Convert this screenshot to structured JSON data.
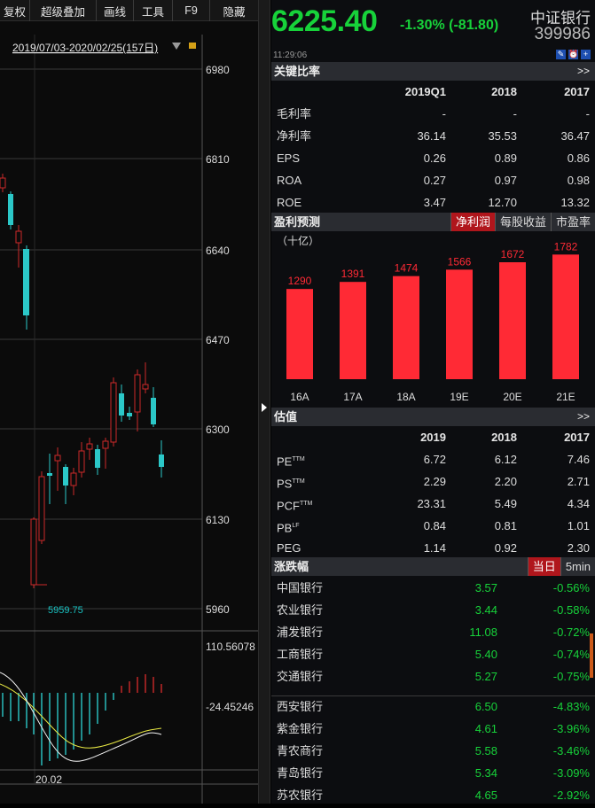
{
  "toolbar": {
    "items": [
      "复权",
      "超级叠加",
      "画线",
      "工具",
      "F9",
      "隐藏"
    ]
  },
  "chart": {
    "date_range": "2019/07/03-2020/02/25(157日)",
    "y_labels": [
      "6980",
      "6810",
      "6640",
      "6470",
      "6300",
      "6130",
      "5960"
    ],
    "low_label": "5959.75",
    "macd_labels": [
      "110.56078",
      "-24.45246"
    ],
    "x_label": "20.02"
  },
  "quote": {
    "price": "6225.40",
    "change": "-1.30% (-81.80)",
    "name": "中证银行",
    "code": "399986",
    "time": "11:29:06"
  },
  "key_ratios": {
    "title": "关键比率",
    "more": ">>",
    "columns": [
      "2019Q1",
      "2018",
      "2017"
    ],
    "rows": [
      {
        "label": "毛利率",
        "values": [
          "-",
          "-",
          "-"
        ]
      },
      {
        "label": "净利率",
        "values": [
          "36.14",
          "35.53",
          "36.47"
        ]
      },
      {
        "label": "EPS",
        "values": [
          "0.26",
          "0.89",
          "0.86"
        ]
      },
      {
        "label": "ROA",
        "values": [
          "0.27",
          "0.97",
          "0.98"
        ]
      },
      {
        "label": "ROE",
        "values": [
          "3.47",
          "12.70",
          "13.32"
        ]
      }
    ]
  },
  "forecast": {
    "title": "盈利预测",
    "tabs": [
      "净利润",
      "每股收益",
      "市盈率"
    ],
    "unit": "（十亿）"
  },
  "chart_data": {
    "type": "bar",
    "categories": [
      "16A",
      "17A",
      "18A",
      "19E",
      "20E",
      "21E"
    ],
    "values": [
      1290,
      1391,
      1474,
      1566,
      1672,
      1782
    ],
    "ylim": [
      0,
      1900
    ],
    "color": "#ff2a35"
  },
  "valuation": {
    "title": "估值",
    "more": ">>",
    "columns": [
      "2019",
      "2018",
      "2017"
    ],
    "rows": [
      {
        "label": "PE",
        "sup": "TTM",
        "values": [
          "6.72",
          "6.12",
          "7.46"
        ]
      },
      {
        "label": "PS",
        "sup": "TTM",
        "values": [
          "2.29",
          "2.20",
          "2.71"
        ]
      },
      {
        "label": "PCF",
        "sup": "TTM",
        "values": [
          "23.31",
          "5.49",
          "4.34"
        ]
      },
      {
        "label": "PB",
        "sup": "LF",
        "values": [
          "0.84",
          "0.81",
          "1.01"
        ]
      },
      {
        "label": "PEG",
        "sup": "",
        "values": [
          "1.14",
          "0.92",
          "2.30"
        ]
      }
    ]
  },
  "movers": {
    "title": "涨跌幅",
    "tabs": [
      "当日",
      "5min"
    ],
    "group1": [
      {
        "name": "中国银行",
        "pe": "3.57",
        "chg": "-0.56%"
      },
      {
        "name": "农业银行",
        "pe": "3.44",
        "chg": "-0.58%"
      },
      {
        "name": "浦发银行",
        "pe": "11.08",
        "chg": "-0.72%"
      },
      {
        "name": "工商银行",
        "pe": "5.40",
        "chg": "-0.74%"
      },
      {
        "name": "交通银行",
        "pe": "5.27",
        "chg": "-0.75%"
      }
    ],
    "group2": [
      {
        "name": "西安银行",
        "pe": "6.50",
        "chg": "-4.83%"
      },
      {
        "name": "紫金银行",
        "pe": "4.61",
        "chg": "-3.96%"
      },
      {
        "name": "青农商行",
        "pe": "5.58",
        "chg": "-3.46%"
      },
      {
        "name": "青岛银行",
        "pe": "5.34",
        "chg": "-3.09%"
      },
      {
        "name": "苏农银行",
        "pe": "4.65",
        "chg": "-2.92%"
      }
    ]
  }
}
